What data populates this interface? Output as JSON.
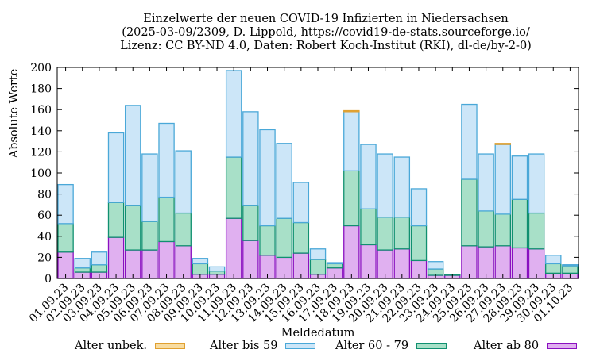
{
  "chart_data": {
    "type": "bar",
    "stacked": true,
    "title_lines": [
      "Einzelwerte der neuen COVID-19 Infizierten in Niedersachsen",
      "(2025-03-09/2309, D. Lippold, https://covid19-de-stats.sourceforge.io/",
      "Lizenz: CC BY-ND 4.0, Daten: Robert Koch-Institut (RKI), dl-de/by-2-0)"
    ],
    "xlabel": "Meldedatum",
    "ylabel": "Absolute Werte",
    "ylim": [
      0,
      200
    ],
    "yticks": [
      0,
      20,
      40,
      60,
      80,
      100,
      120,
      140,
      160,
      180,
      200
    ],
    "categories": [
      "01.09.23",
      "02.09.23",
      "03.09.23",
      "04.09.23",
      "05.09.23",
      "06.09.23",
      "07.09.23",
      "08.09.23",
      "09.09.23",
      "10.09.23",
      "11.09.23",
      "12.09.23",
      "13.09.23",
      "14.09.23",
      "15.09.23",
      "16.09.23",
      "17.09.23",
      "18.09.23",
      "19.09.23",
      "20.09.23",
      "21.09.23",
      "22.09.23",
      "23.09.23",
      "24.09.23",
      "25.09.23",
      "26.09.23",
      "27.09.23",
      "28.09.23",
      "29.09.23",
      "30.09.23",
      "01.10.23"
    ],
    "series": [
      {
        "name": "Alter ab 80",
        "fill": "#e0b0f0",
        "stroke": "#8a10c0",
        "values": [
          25,
          6,
          6,
          39,
          27,
          27,
          35,
          31,
          4,
          4,
          57,
          36,
          22,
          20,
          24,
          4,
          10,
          50,
          32,
          27,
          28,
          17,
          3,
          3,
          31,
          30,
          31,
          29,
          28,
          5,
          5
        ]
      },
      {
        "name": "Alter 60 - 79",
        "fill": "#a8e0c8",
        "stroke": "#109070",
        "values": [
          27,
          4,
          7,
          33,
          42,
          27,
          42,
          31,
          10,
          3,
          58,
          33,
          28,
          37,
          29,
          14,
          4,
          52,
          34,
          31,
          30,
          33,
          6,
          1,
          63,
          34,
          30,
          46,
          34,
          9,
          7
        ]
      },
      {
        "name": "Alter bis 59",
        "fill": "#cce6f8",
        "stroke": "#4aa8d8",
        "values": [
          37,
          9,
          12,
          66,
          95,
          64,
          70,
          59,
          5,
          4,
          82,
          89,
          91,
          71,
          38,
          10,
          1,
          56,
          61,
          60,
          57,
          35,
          7,
          0,
          71,
          54,
          66,
          41,
          56,
          8,
          1
        ]
      },
      {
        "name": "Alter unbek.",
        "fill": "#f8dca0",
        "stroke": "#e0a030",
        "values": [
          0,
          0,
          0,
          0,
          0,
          0,
          0,
          0,
          0,
          0,
          0,
          0,
          0,
          0,
          0,
          0,
          0,
          1,
          0,
          0,
          0,
          0,
          0,
          0,
          0,
          0,
          1,
          0,
          0,
          0,
          0
        ]
      }
    ],
    "legend_placement": "bottom"
  },
  "colors": {
    "axis": "#000000",
    "background": "#ffffff"
  }
}
